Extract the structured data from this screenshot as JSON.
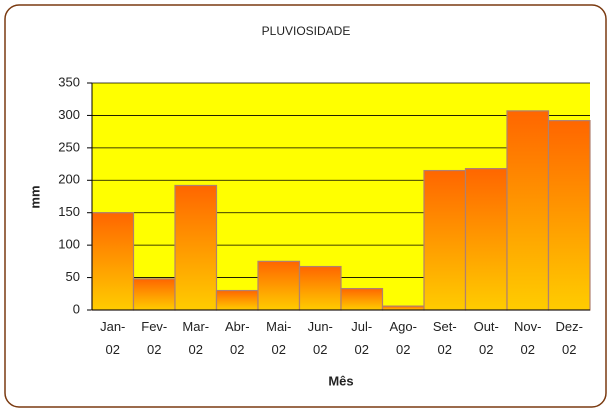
{
  "chart_data": {
    "type": "bar",
    "title": "PLUVIOSIDADE",
    "x_label": "Mês",
    "y_label": "mm",
    "categories": [
      "Jan-02",
      "Fev-02",
      "Mar-02",
      "Abr-02",
      "Mai-02",
      "Jun-02",
      "Jul-02",
      "Ago-02",
      "Set-02",
      "Out-02",
      "Nov-02",
      "Dez-02"
    ],
    "values": [
      150,
      48,
      192,
      30,
      75,
      67,
      33,
      6,
      215,
      218,
      307,
      292
    ],
    "gradient": [
      "#ff6600",
      "#ffcc00"
    ],
    "plot_background": "#ffff00",
    "ylim": [
      0,
      350
    ],
    "yticks": [
      0,
      50,
      100,
      150,
      200,
      250,
      300,
      350
    ],
    "grid": true
  }
}
